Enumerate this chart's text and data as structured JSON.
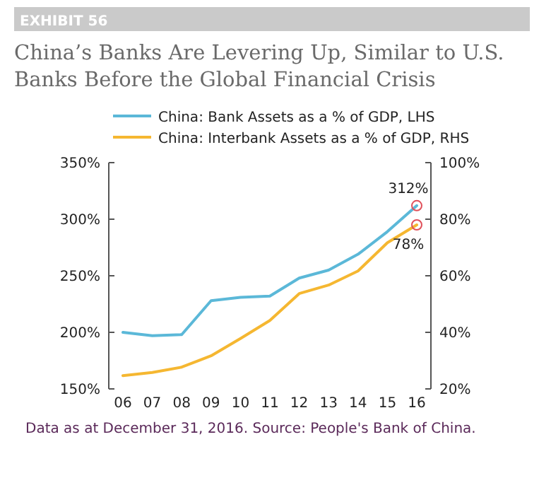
{
  "chart_data": {
    "type": "line",
    "title": "China’s Banks Are Levering Up, Similar to U.S. Banks Before the Global Financial Crisis",
    "categories": [
      "06",
      "07",
      "08",
      "09",
      "10",
      "11",
      "12",
      "13",
      "14",
      "15",
      "16"
    ],
    "series": [
      {
        "name": "China: Bank Assets as a % of GDP, LHS",
        "color": "#5bb8d8",
        "values": [
          200,
          197,
          198,
          228,
          231,
          232,
          248,
          255,
          269,
          289,
          312
        ],
        "value_labels": [
          null,
          null,
          null,
          null,
          null,
          null,
          null,
          null,
          null,
          null,
          "312%"
        ]
      },
      {
        "name": "China: Interbank Assets as a % of GDP, RHS",
        "color": "#f5b731",
        "axis": "y2",
        "values": [
          24.7,
          25.8,
          27.7,
          31.7,
          37.8,
          44.2,
          53.7,
          56.7,
          61.7,
          71.7,
          78
        ],
        "value_labels": [
          null,
          null,
          null,
          null,
          null,
          null,
          null,
          null,
          null,
          null,
          "78%"
        ]
      }
    ],
    "ylim": [
      150,
      350
    ],
    "yticks": [
      {
        "value": 150,
        "label": "150%"
      },
      {
        "value": 200,
        "label": "200%"
      },
      {
        "value": 250,
        "label": "250%"
      },
      {
        "value": 300,
        "label": "300%"
      },
      {
        "value": 350,
        "label": "350%"
      }
    ],
    "y2lim": [
      20,
      100
    ],
    "y2ticks": [
      {
        "value": 20,
        "label": "20%"
      },
      {
        "value": 40,
        "label": "40%"
      },
      {
        "value": 60,
        "label": "60%"
      },
      {
        "value": 80,
        "label": "80%"
      },
      {
        "value": 100,
        "label": "100%"
      }
    ],
    "legend": "top",
    "grid": false,
    "marker": "none",
    "line_style": "solid",
    "annotations": [
      "EXHIBIT 56",
      "Data as at December 31, 2016. Source: People's Bank of China."
    ]
  }
}
